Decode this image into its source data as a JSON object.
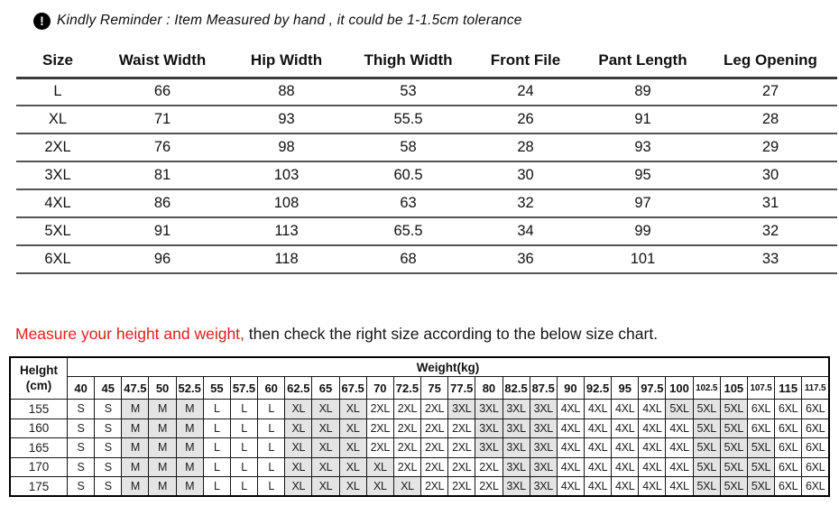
{
  "reminder": {
    "icon_name": "exclamation-circle-icon",
    "icon_glyph": "!",
    "text": "Kindly Reminder : Item Measured by hand , it could be 1-1.5cm tolerance"
  },
  "size_table": {
    "columns": [
      "Size",
      "Waist Width",
      "Hip Width",
      "Thigh Width",
      "Front File",
      "Pant Length",
      "Leg Opening"
    ],
    "rows": [
      [
        "L",
        "66",
        "88",
        "53",
        "24",
        "89",
        "27"
      ],
      [
        "XL",
        "71",
        "93",
        "55.5",
        "26",
        "91",
        "28"
      ],
      [
        "2XL",
        "76",
        "98",
        "58",
        "28",
        "93",
        "29"
      ],
      [
        "3XL",
        "81",
        "103",
        "60.5",
        "30",
        "95",
        "30"
      ],
      [
        "4XL",
        "86",
        "108",
        "63",
        "32",
        "97",
        "31"
      ],
      [
        "5XL",
        "91",
        "113",
        "65.5",
        "34",
        "99",
        "32"
      ],
      [
        "6XL",
        "96",
        "118",
        "68",
        "36",
        "101",
        "33"
      ]
    ]
  },
  "measure_note": {
    "highlight": "Measure your height and weight,",
    "rest": " then check the right size according to the below size chart."
  },
  "size_chart": {
    "height_label_line1": "Helght",
    "height_label_line2": "(cm)",
    "weight_header": "Weight(kg)",
    "weights": [
      "40",
      "45",
      "47.5",
      "50",
      "52.5",
      "55",
      "57.5",
      "60",
      "62.5",
      "65",
      "67.5",
      "70",
      "72.5",
      "75",
      "77.5",
      "80",
      "82.5",
      "87.5",
      "90",
      "92.5",
      "95",
      "97.5",
      "100",
      "102.5",
      "105",
      "107.5",
      "115",
      "117.5"
    ],
    "rows": [
      {
        "height": "155",
        "sizes": [
          "S",
          "S",
          "M",
          "M",
          "M",
          "L",
          "L",
          "L",
          "XL",
          "XL",
          "XL",
          "2XL",
          "2XL",
          "2XL",
          "3XL",
          "3XL",
          "3XL",
          "3XL",
          "4XL",
          "4XL",
          "4XL",
          "4XL",
          "5XL",
          "5XL",
          "5XL",
          "6XL",
          "6XL",
          "6XL"
        ]
      },
      {
        "height": "160",
        "sizes": [
          "S",
          "S",
          "M",
          "M",
          "M",
          "L",
          "L",
          "L",
          "XL",
          "XL",
          "XL",
          "2XL",
          "2XL",
          "2XL",
          "2XL",
          "3XL",
          "3XL",
          "3XL",
          "4XL",
          "4XL",
          "4XL",
          "4XL",
          "4XL",
          "5XL",
          "5XL",
          "6XL",
          "6XL",
          "6XL"
        ]
      },
      {
        "height": "165",
        "sizes": [
          "S",
          "S",
          "M",
          "M",
          "M",
          "L",
          "L",
          "L",
          "XL",
          "XL",
          "XL",
          "2XL",
          "2XL",
          "2XL",
          "2XL",
          "3XL",
          "3XL",
          "3XL",
          "4XL",
          "4XL",
          "4XL",
          "4XL",
          "4XL",
          "5XL",
          "5XL",
          "5XL",
          "6XL",
          "6XL"
        ]
      },
      {
        "height": "170",
        "sizes": [
          "S",
          "S",
          "M",
          "M",
          "M",
          "L",
          "L",
          "L",
          "XL",
          "XL",
          "XL",
          "XL",
          "2XL",
          "2XL",
          "2XL",
          "2XL",
          "3XL",
          "3XL",
          "4XL",
          "4XL",
          "4XL",
          "4XL",
          "4XL",
          "5XL",
          "5XL",
          "5XL",
          "6XL",
          "6XL"
        ]
      },
      {
        "height": "175",
        "sizes": [
          "S",
          "S",
          "M",
          "M",
          "M",
          "L",
          "L",
          "L",
          "XL",
          "XL",
          "XL",
          "XL",
          "XL",
          "2XL",
          "2XL",
          "2XL",
          "3XL",
          "3XL",
          "4XL",
          "4XL",
          "4XL",
          "4XL",
          "4XL",
          "5XL",
          "5XL",
          "5XL",
          "6XL",
          "6XL"
        ]
      }
    ],
    "shaded_sizes": [
      "M",
      "XL",
      "3XL",
      "5XL"
    ]
  },
  "colors": {
    "accent_red": "#e01d1d",
    "shaded_cell": "#e4e4e4",
    "table_border": "#000000",
    "icon_background": "#000000"
  }
}
